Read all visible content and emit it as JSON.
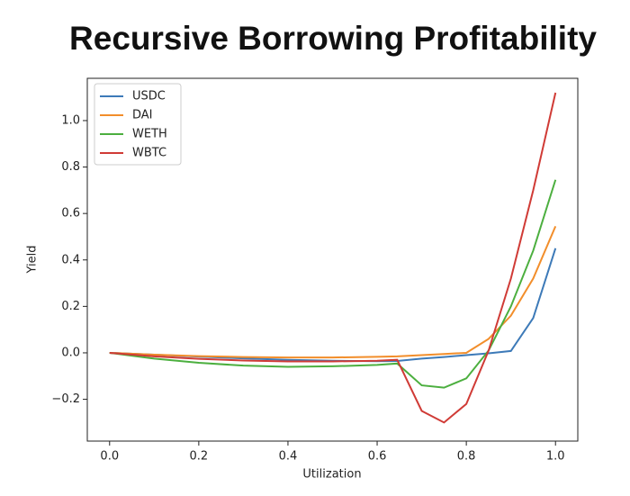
{
  "chart_data": {
    "type": "line",
    "title": "Recursive Borrowing Profitability",
    "x_label": "Utilization",
    "y_label": "Yield",
    "x": [
      0,
      0.1,
      0.2,
      0.3,
      0.4,
      0.5,
      0.6,
      0.645,
      0.7,
      0.75,
      0.8,
      0.85,
      0.9,
      0.95,
      1.0
    ],
    "series": [
      {
        "name": "USDC",
        "color": "#3d7ab8",
        "values": [
          0,
          -0.008,
          -0.016,
          -0.024,
          -0.03,
          -0.034,
          -0.036,
          -0.035,
          -0.025,
          -0.018,
          -0.01,
          -0.002,
          0.008,
          0.15,
          0.45
        ]
      },
      {
        "name": "DAI",
        "color": "#f28e2b",
        "values": [
          0,
          -0.008,
          -0.014,
          -0.018,
          -0.02,
          -0.02,
          -0.017,
          -0.015,
          -0.01,
          -0.005,
          0.0,
          0.06,
          0.16,
          0.32,
          0.545
        ]
      },
      {
        "name": "WETH",
        "color": "#4caf3f",
        "values": [
          0,
          -0.025,
          -0.043,
          -0.055,
          -0.06,
          -0.058,
          -0.052,
          -0.046,
          -0.14,
          -0.15,
          -0.11,
          0.01,
          0.2,
          0.44,
          0.745
        ]
      },
      {
        "name": "WBTC",
        "color": "#d03b36",
        "values": [
          0,
          -0.015,
          -0.026,
          -0.033,
          -0.037,
          -0.037,
          -0.034,
          -0.03,
          -0.25,
          -0.3,
          -0.22,
          0.01,
          0.32,
          0.7,
          1.12
        ]
      }
    ],
    "xlim": [
      -0.05,
      1.05
    ],
    "xticks": [
      {
        "value": 0,
        "label": "0.0"
      },
      0.2,
      0.4,
      0.6,
      0.8,
      {
        "value": 1,
        "label": "1.0"
      }
    ],
    "ylim": [
      -0.38,
      1.182
    ],
    "yticks": [
      {
        "value": -0.2,
        "label": "−0.2"
      },
      {
        "value": 0,
        "label": "0.0"
      },
      0.2,
      0.4,
      0.6,
      0.8,
      {
        "value": 1,
        "label": "1.0"
      }
    ],
    "legend": "upper left",
    "grid": false
  }
}
